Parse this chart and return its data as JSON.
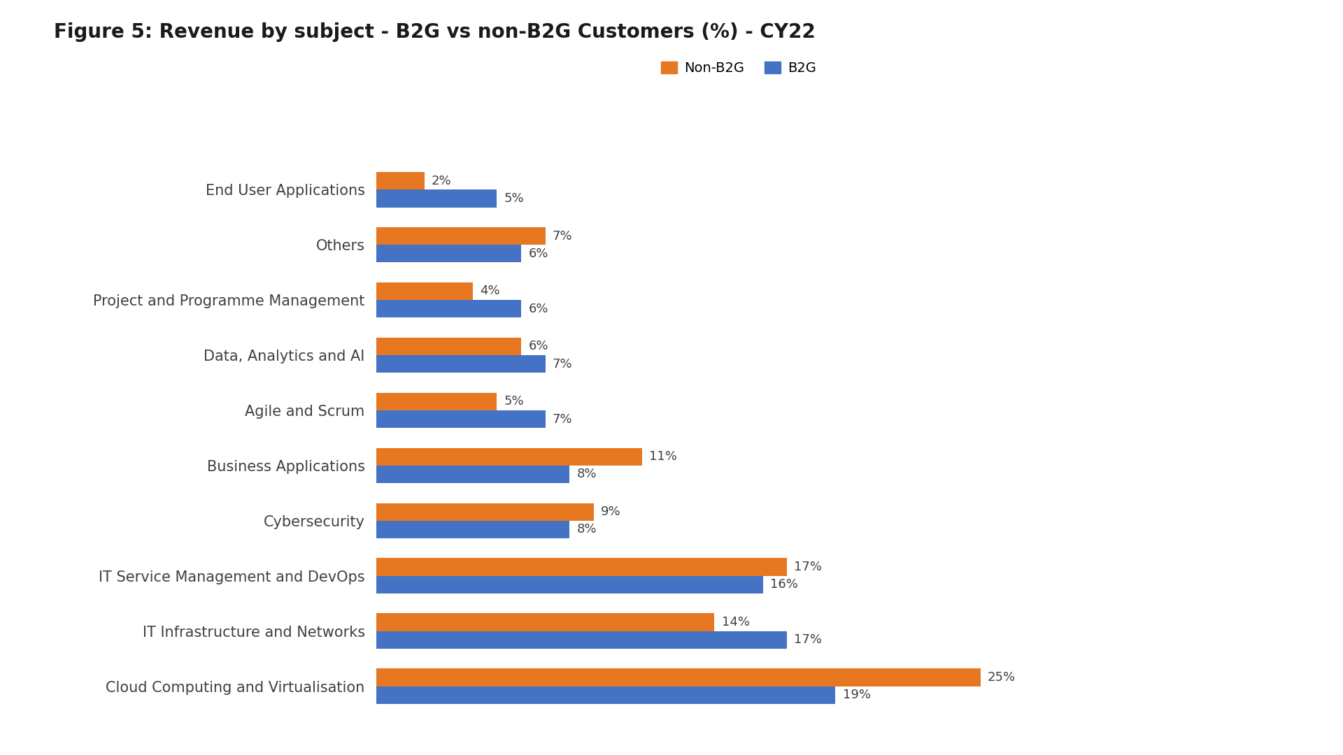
{
  "title": "Figure 5: Revenue by subject - B2G vs non-B2G Customers (%) - CY22",
  "categories": [
    "Cloud Computing and Virtualisation",
    "IT Infrastructure and Networks",
    "IT Service Management and DevOps",
    "Cybersecurity",
    "Business Applications",
    "Agile and Scrum",
    "Data, Analytics and AI",
    "Project and Programme Management",
    "Others",
    "End User Applications"
  ],
  "non_b2g_values": [
    25,
    14,
    17,
    9,
    11,
    5,
    6,
    4,
    7,
    2
  ],
  "b2g_values": [
    19,
    17,
    16,
    8,
    8,
    7,
    7,
    6,
    6,
    5
  ],
  "non_b2g_color": "#E87722",
  "b2g_color": "#4472C4",
  "legend_labels": [
    "Non-B2G",
    "B2G"
  ],
  "background_color": "#FFFFFF",
  "title_fontsize": 20,
  "label_fontsize": 15,
  "value_fontsize": 13,
  "legend_fontsize": 14,
  "bar_height": 0.32,
  "xlim": [
    0,
    30
  ]
}
